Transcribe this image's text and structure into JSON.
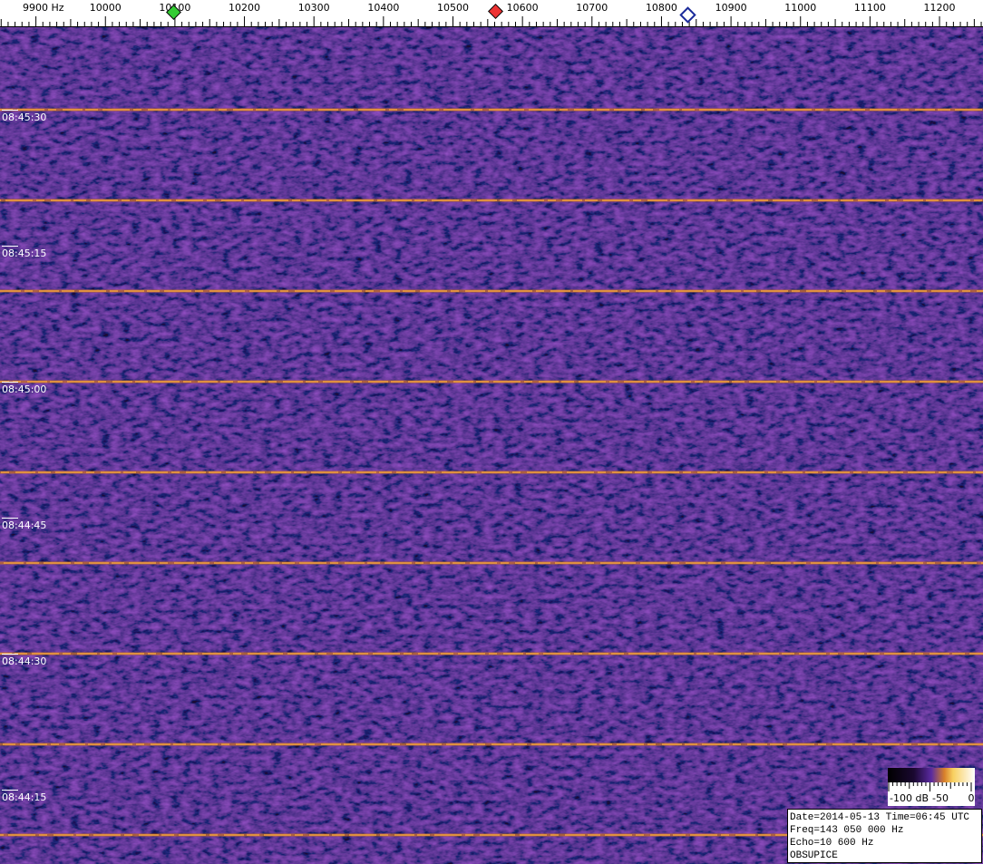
{
  "frequency_axis": {
    "labels": [
      "9900 Hz",
      "10000",
      "10100",
      "10200",
      "10300",
      "10400",
      "10500",
      "10600",
      "10700",
      "10800",
      "10900",
      "11000",
      "11100",
      "11200"
    ]
  },
  "time_labels": [
    "08:45:30",
    "08:45:15",
    "08:45:00",
    "08:44:45",
    "08:44:30",
    "08:44:15"
  ],
  "color_scale": {
    "labels": [
      "-100 dB",
      "-50",
      "0"
    ]
  },
  "info": {
    "lines": [
      "Date=2014-05-13 Time=06:45 UTC",
      "Freq=143 050 000 Hz",
      "Echo=10 600 Hz",
      "OBSUPICE"
    ]
  }
}
